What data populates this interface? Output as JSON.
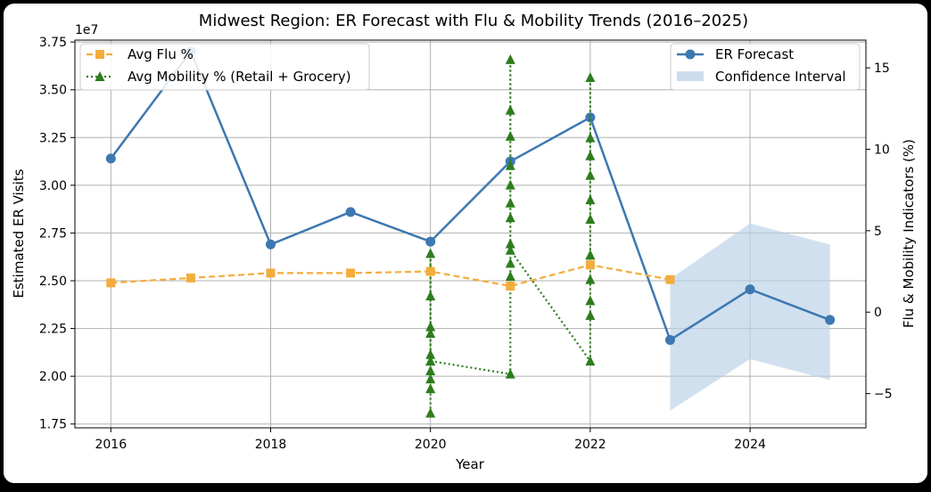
{
  "chart_data": {
    "type": "line",
    "title": "Midwest Region: ER Forecast with Flu & Mobility Trends (2016–2025)",
    "xlabel": "Year",
    "ylabel": "Estimated ER Visits",
    "y2label": "Flu & Mobility Indicators (%)",
    "y_offset_label": "1e7",
    "xlim": [
      2015.55,
      2025.45
    ],
    "ylim": [
      1.73,
      3.76
    ],
    "y2lim": [
      -7.1,
      16.7
    ],
    "grid": true,
    "x_ticks": [
      {
        "v": 2016,
        "label": "2016"
      },
      {
        "v": 2018,
        "label": "2018"
      },
      {
        "v": 2020,
        "label": "2020"
      },
      {
        "v": 2022,
        "label": "2022"
      },
      {
        "v": 2024,
        "label": "2024"
      }
    ],
    "y_ticks": [
      {
        "v": 1.75,
        "label": "1.75"
      },
      {
        "v": 2.0,
        "label": "2.00"
      },
      {
        "v": 2.25,
        "label": "2.25"
      },
      {
        "v": 2.5,
        "label": "2.50"
      },
      {
        "v": 2.75,
        "label": "2.75"
      },
      {
        "v": 3.0,
        "label": "3.00"
      },
      {
        "v": 3.25,
        "label": "3.25"
      },
      {
        "v": 3.5,
        "label": "3.50"
      },
      {
        "v": 3.75,
        "label": "3.75"
      }
    ],
    "y2_ticks": [
      {
        "v": -5,
        "label": "−5"
      },
      {
        "v": 0,
        "label": "0"
      },
      {
        "v": 5,
        "label": "5"
      },
      {
        "v": 10,
        "label": "10"
      },
      {
        "v": 15,
        "label": "15"
      }
    ],
    "er_forecast": {
      "name": "ER Forecast",
      "color": "#3d78b0",
      "x": [
        2016,
        2017,
        2018,
        2019,
        2020,
        2021,
        2022,
        2023,
        2024,
        2025
      ],
      "y": [
        3.14,
        3.7,
        2.69,
        2.86,
        2.705,
        3.125,
        3.355,
        2.19,
        2.455,
        2.295
      ]
    },
    "confidence_interval": {
      "name": "Confidence Interval",
      "color": "#b8cfe6",
      "x": [
        2023,
        2024,
        2025
      ],
      "lower": [
        1.82,
        2.09,
        1.98
      ],
      "upper": [
        2.51,
        2.8,
        2.69
      ]
    },
    "flu": {
      "name": "Avg Flu %",
      "color": "#f4ac3c",
      "x": [
        2016,
        2017,
        2018,
        2019,
        2020,
        2021,
        2022,
        2023
      ],
      "y": [
        1.8,
        2.1,
        2.4,
        2.4,
        2.5,
        1.6,
        2.9,
        2.0
      ]
    },
    "mobility": {
      "name": "Avg Mobility % (Retail + Grocery)",
      "color": "#2e7d1e",
      "x": [
        2020,
        2020,
        2020,
        2020,
        2020,
        2020,
        2020,
        2020,
        2020,
        2020,
        2020,
        2020,
        2021,
        2021,
        2021,
        2021,
        2021,
        2021,
        2021,
        2021,
        2021,
        2021,
        2021,
        2021,
        2022,
        2022,
        2022,
        2022,
        2022,
        2022,
        2022,
        2022,
        2022,
        2022,
        2022,
        2022
      ],
      "y": [
        -6.2,
        -4.7,
        -4.1,
        -3.6,
        -3.0,
        -2.6,
        -1.3,
        -0.9,
        1.0,
        2.6,
        3.6,
        -3.0,
        -3.8,
        2.2,
        3.0,
        4.2,
        5.8,
        6.7,
        7.8,
        9.0,
        10.8,
        12.4,
        15.5,
        3.8,
        -3.0,
        -0.2,
        0.7,
        2.0,
        3.5,
        5.7,
        6.9,
        8.4,
        9.6,
        10.7,
        14.4,
        3.5
      ]
    },
    "legend_left": [
      "Avg Flu %",
      "Avg Mobility % (Retail + Grocery)"
    ],
    "legend_right": [
      "ER Forecast",
      "Confidence Interval"
    ]
  }
}
